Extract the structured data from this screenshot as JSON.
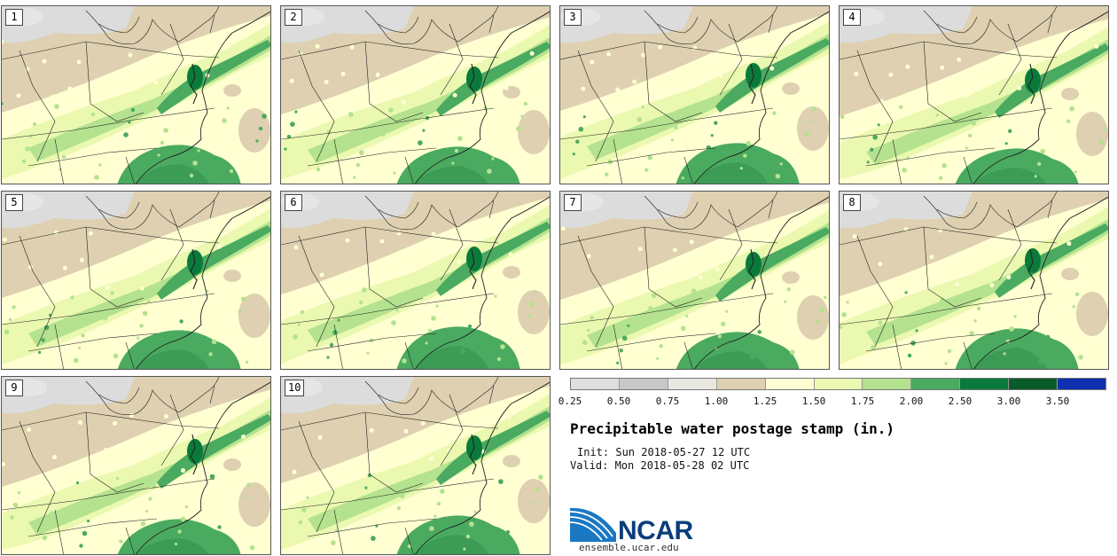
{
  "figure": {
    "title": "Precipitable water postage stamp (in.)",
    "init_line": "Init: Sun 2018-05-27 12 UTC",
    "valid_line": "Valid: Mon 2018-05-28 02 UTC",
    "site": "ensemble.ucar.edu",
    "logo_text": "NCAR"
  },
  "members": [
    {
      "label": "1",
      "shift": 0,
      "phase": 0.0
    },
    {
      "label": "2",
      "shift": 1,
      "phase": 1.3
    },
    {
      "label": "3",
      "shift": -1,
      "phase": 2.1
    },
    {
      "label": "4",
      "shift": 2,
      "phase": 3.4
    },
    {
      "label": "5",
      "shift": 0,
      "phase": 4.2
    },
    {
      "label": "6",
      "shift": -2,
      "phase": 5.0
    },
    {
      "label": "7",
      "shift": 1,
      "phase": 5.9
    },
    {
      "label": "8",
      "shift": -1,
      "phase": 6.7
    },
    {
      "label": "9",
      "shift": 2,
      "phase": 7.5
    },
    {
      "label": "10",
      "shift": 0,
      "phase": 8.3
    }
  ],
  "colorbar": {
    "ticks": [
      "0.25",
      "0.50",
      "0.75",
      "1.00",
      "1.25",
      "1.50",
      "1.75",
      "2.00",
      "2.50",
      "3.00",
      "3.50"
    ],
    "colors": [
      "#dedede",
      "#c8c8c8",
      "#e8e8e0",
      "#ded0b0",
      "#ffffd2",
      "#eaf8b0",
      "#b4e28e",
      "#4aaa60",
      "#0a7a3a",
      "#0a5a2a",
      "#1030b0"
    ]
  },
  "legend_fill_colors": {
    "land_tan": "#ded0b0",
    "dry_gray": "#dcdcdc",
    "light_yellow": "#ffffd2",
    "light_green": "#eaf8b0",
    "mid_green": "#b4e28e",
    "green": "#4aaa60",
    "dark_green": "#0a7a3a"
  }
}
